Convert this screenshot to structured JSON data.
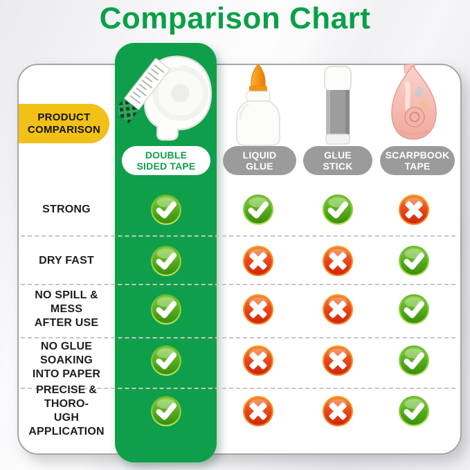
{
  "title": "Comparison Chart",
  "badge_label": "PRODUCT\nCOMPARISON",
  "columns": [
    {
      "label": "DOUBLE\nSIDED TAPE",
      "highlighted": true,
      "icon": "double-sided-tape-dispenser-icon"
    },
    {
      "label": "LIQUID\nGLUE",
      "highlighted": false,
      "icon": "liquid-glue-bottle-icon"
    },
    {
      "label": "GLUE\nSTICK",
      "highlighted": false,
      "icon": "glue-stick-icon"
    },
    {
      "label": "SCARPBOOK\nTAPE",
      "highlighted": false,
      "icon": "scrapbook-tape-runner-icon"
    }
  ],
  "rows": [
    {
      "label": "STRONG",
      "values": [
        "yes",
        "yes",
        "yes",
        "no"
      ]
    },
    {
      "label": "DRY FAST",
      "values": [
        "yes",
        "no",
        "no",
        "yes"
      ]
    },
    {
      "label": "NO SPILL & MESS\nAFTER USE",
      "values": [
        "yes",
        "no",
        "no",
        "yes"
      ]
    },
    {
      "label": "NO GLUE SOAKING\nINTO PAPER",
      "values": [
        "yes",
        "no",
        "no",
        "yes"
      ]
    },
    {
      "label": "PRECISE & THORO-\nUGH APPLICATION",
      "values": [
        "yes",
        "no",
        "no",
        "yes"
      ]
    }
  ],
  "icons": {
    "yes": "check-icon",
    "no": "cross-icon"
  },
  "colors": {
    "title_green": "#0aa048",
    "column_green": "#0f9f4b",
    "badge_yellow": "#f2c117",
    "pill_gray": "#9b9b9b",
    "check_green": "#56ae1e",
    "cross_red": "#e0361a"
  },
  "chart_data": {
    "type": "table",
    "title": "Comparison Chart",
    "columns": [
      "DOUBLE SIDED TAPE",
      "LIQUID GLUE",
      "GLUE STICK",
      "SCARPBOOK TAPE"
    ],
    "row_labels": [
      "STRONG",
      "DRY FAST",
      "NO SPILL & MESS AFTER USE",
      "NO GLUE SOAKING INTO PAPER",
      "PRECISE & THOROUGH APPLICATION"
    ],
    "values": [
      [
        "yes",
        "yes",
        "yes",
        "no"
      ],
      [
        "yes",
        "no",
        "no",
        "yes"
      ],
      [
        "yes",
        "no",
        "no",
        "yes"
      ],
      [
        "yes",
        "no",
        "no",
        "yes"
      ],
      [
        "yes",
        "no",
        "no",
        "yes"
      ]
    ],
    "highlighted_column": "DOUBLE SIDED TAPE",
    "legend": {
      "yes": "green check",
      "no": "red cross"
    }
  }
}
